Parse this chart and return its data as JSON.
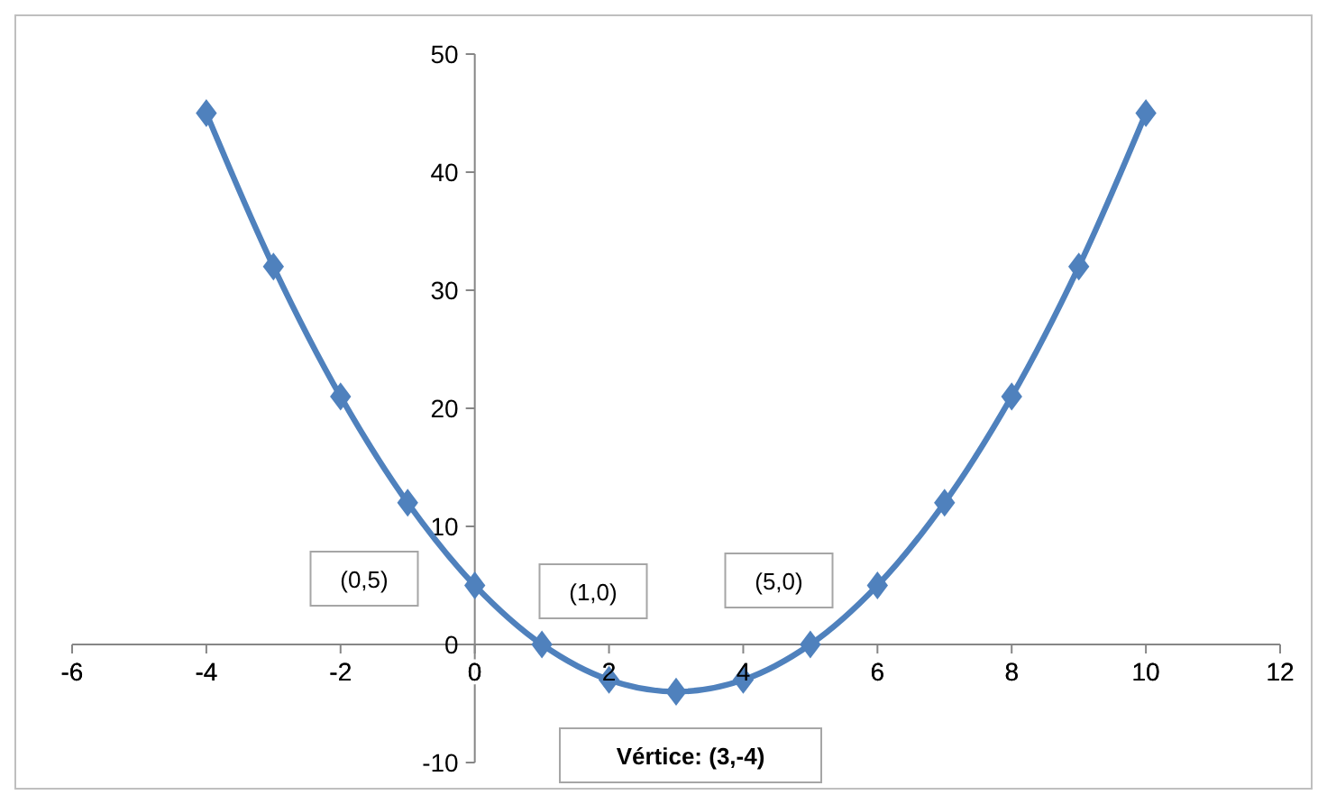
{
  "chart_data": {
    "type": "line",
    "x": [
      -4,
      -3,
      -2,
      -1,
      0,
      1,
      2,
      3,
      4,
      5,
      6,
      7,
      8,
      9,
      10
    ],
    "series": [
      {
        "color": "#4f81bd",
        "values": [
          45,
          32,
          21,
          12,
          5,
          0,
          -3,
          -4,
          -3,
          0,
          5,
          12,
          21,
          32,
          45
        ]
      }
    ],
    "xlim": [
      -6,
      12
    ],
    "xticks": [
      -6,
      -4,
      -2,
      0,
      2,
      4,
      6,
      8,
      10,
      12
    ],
    "ylim": [
      -10,
      50
    ],
    "yticks": [
      -10,
      0,
      10,
      20,
      30,
      40,
      50
    ],
    "grid": false,
    "marker": "diamond",
    "line_style": "solid",
    "annotations": [
      "(0,5)",
      "(1,0)",
      "(5,0)",
      "Vértice: (3,-4)"
    ]
  }
}
